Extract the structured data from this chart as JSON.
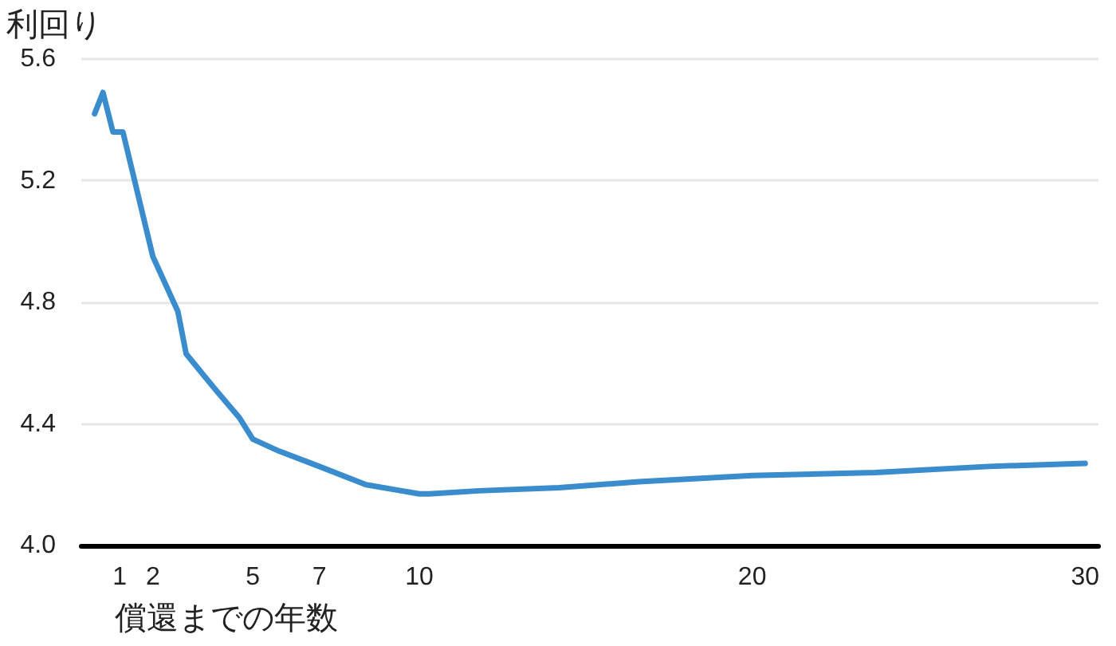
{
  "chart_data": {
    "type": "line",
    "ylabel": "利回り",
    "xlabel": "償還までの年数",
    "series": [
      {
        "color": "#3a8ccc",
        "x": [
          0.25,
          0.5,
          0.8,
          1.1,
          2,
          2.75,
          3,
          3.9,
          4.6,
          5,
          5.8,
          7,
          8.4,
          10,
          10.3,
          11.8,
          14.2,
          16.6,
          20,
          23.7,
          27.1,
          30
        ],
        "values": [
          5.42,
          5.49,
          5.36,
          5.36,
          4.95,
          4.77,
          4.63,
          4.51,
          4.42,
          4.35,
          4.31,
          4.26,
          4.2,
          4.17,
          4.17,
          4.18,
          4.19,
          4.21,
          4.23,
          4.24,
          4.26,
          4.27
        ]
      }
    ],
    "xlim": [
      -0.15,
      30.4
    ],
    "xticks": [
      1,
      2,
      5,
      7,
      10,
      20,
      30
    ],
    "ylim": [
      4,
      5.6
    ],
    "yticks": [
      {
        "value": 4,
        "label": "4.0"
      },
      4.4,
      4.8,
      5.2,
      5.6
    ],
    "grid": "y",
    "marker": "none",
    "line_style": "solid"
  }
}
